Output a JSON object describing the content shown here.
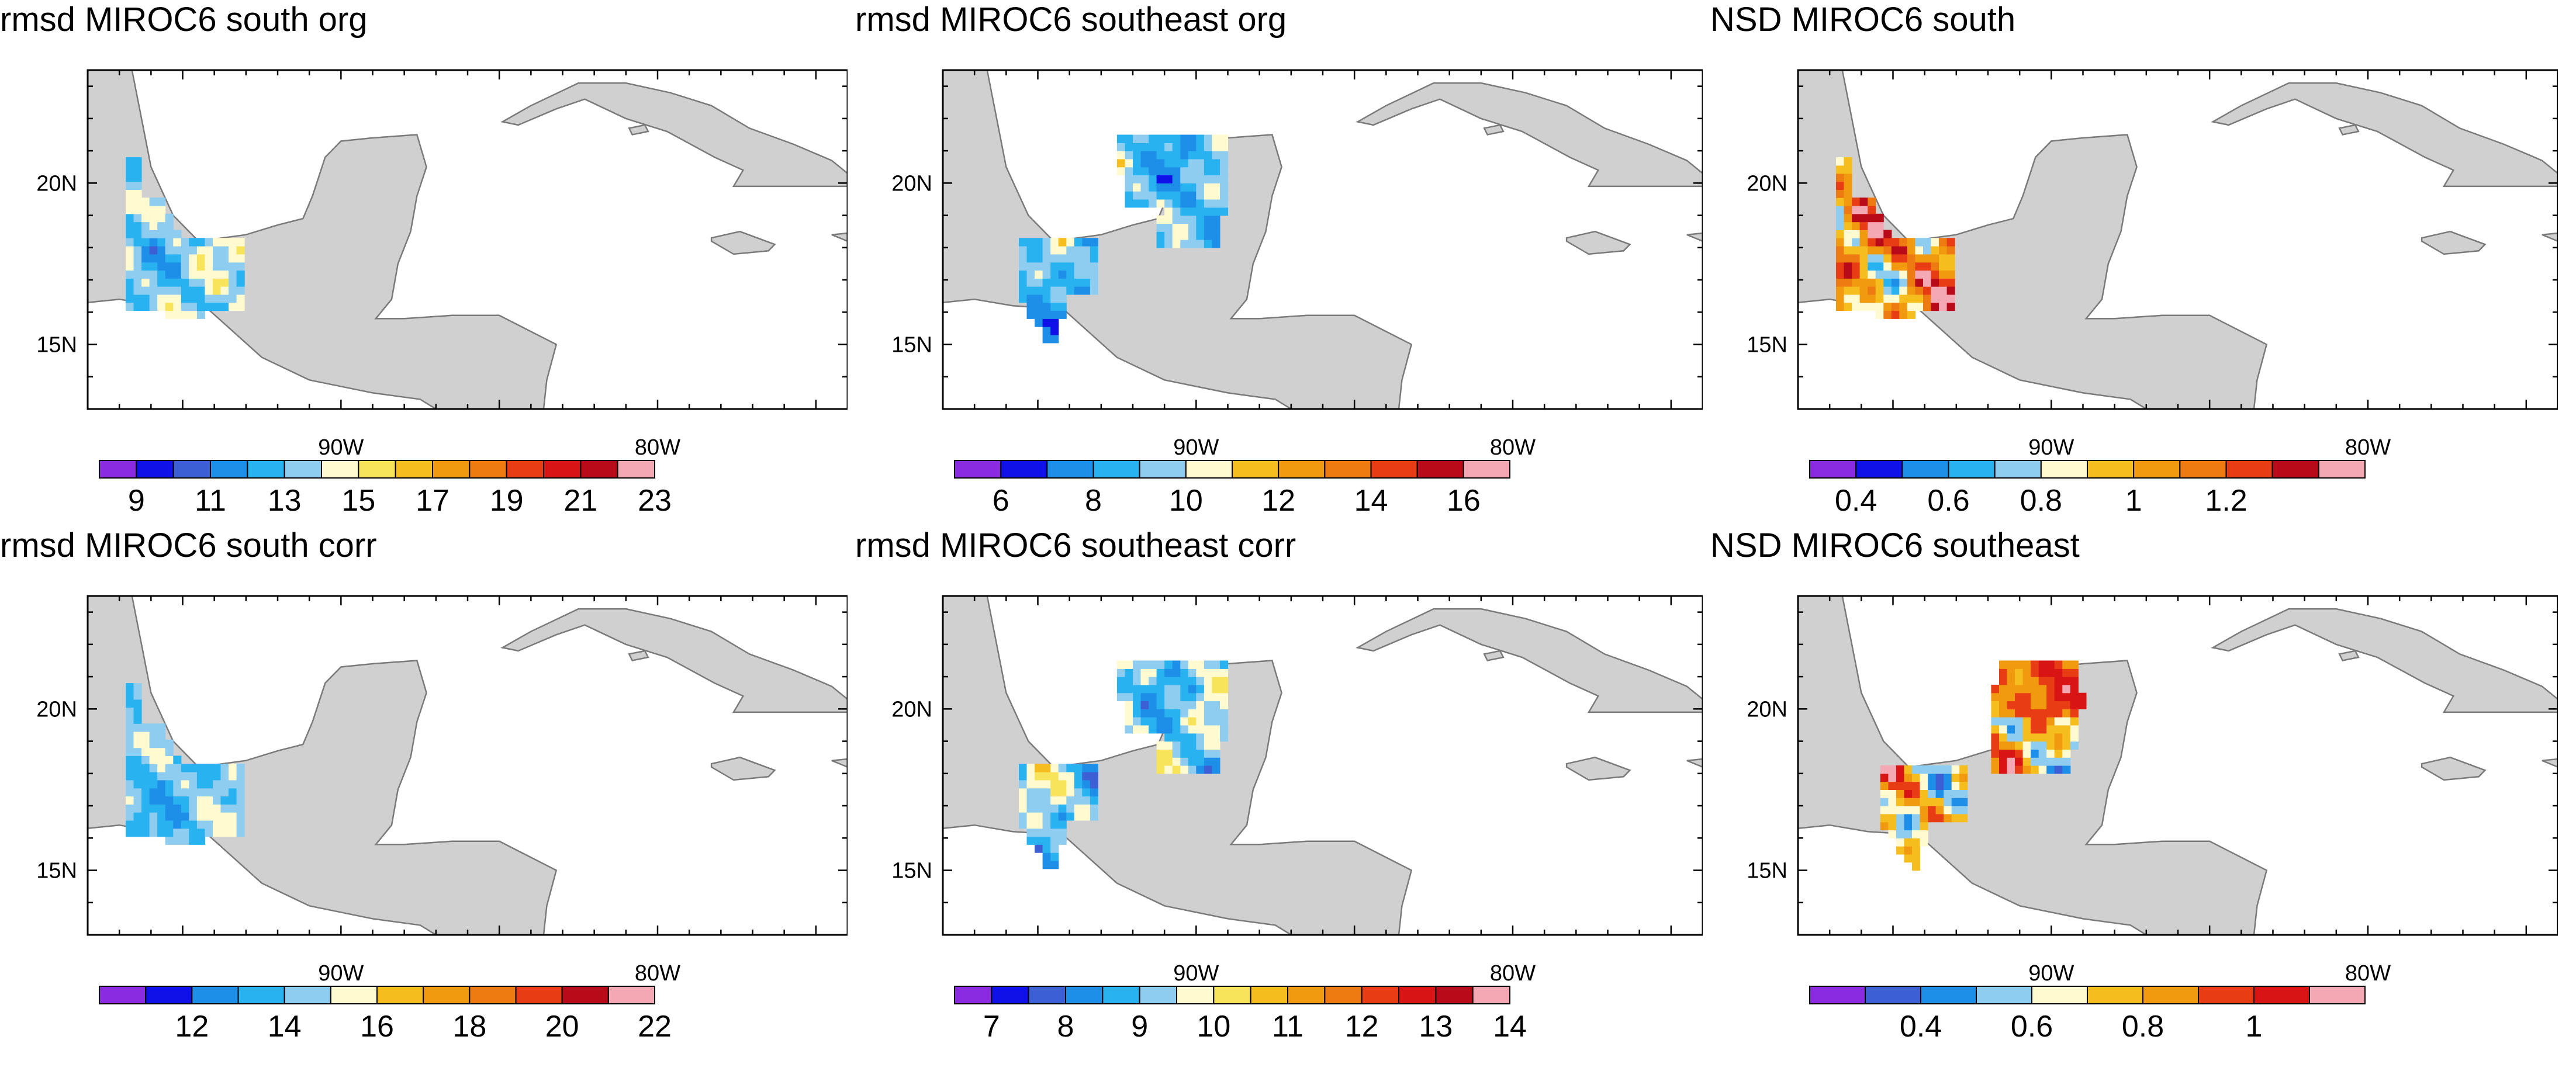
{
  "colors": {
    "land": "#d0d0d0",
    "coast": "#7a7a7a",
    "frame": "#000000",
    "palette": [
      "#8a2be2",
      "#1010e8",
      "#3c5fd6",
      "#1e8fe8",
      "#29b2f0",
      "#8ecdf0",
      "#fffad0",
      "#f8e45a",
      "#f5be1e",
      "#f29a0f",
      "#ee7a12",
      "#e83c15",
      "#d91414",
      "#b80a18",
      "#f4a8b4"
    ]
  },
  "chart_data": [
    {
      "type": "heatmap",
      "title": "rmsd MIROC6 south org",
      "region": "south",
      "xlim": [
        -98,
        -74
      ],
      "ylim": [
        13,
        23.5
      ],
      "x_ticks": [
        "90W",
        "80W"
      ],
      "y_ticks": [
        "20N",
        "15N"
      ],
      "colorbar": {
        "labels": [
          "9",
          "11",
          "13",
          "15",
          "17",
          "19",
          "21",
          "23"
        ],
        "bins": 15,
        "first_label_bin": 1,
        "label_step": 2
      }
    },
    {
      "type": "heatmap",
      "title": "rmsd MIROC6 southeast org",
      "region": "southeast",
      "xlim": [
        -98,
        -74
      ],
      "ylim": [
        13,
        23.5
      ],
      "x_ticks": [
        "90W",
        "80W"
      ],
      "y_ticks": [
        "20N",
        "15N"
      ],
      "colorbar": {
        "labels": [
          "6",
          "8",
          "10",
          "12",
          "14",
          "16"
        ],
        "bins": 12,
        "first_label_bin": 1,
        "label_step": 2
      }
    },
    {
      "type": "heatmap",
      "title": "NSD MIROC6 south",
      "region": "south",
      "xlim": [
        -98,
        -74
      ],
      "ylim": [
        13,
        23.5
      ],
      "x_ticks": [
        "90W",
        "80W"
      ],
      "y_ticks": [
        "20N",
        "15N"
      ],
      "colorbar": {
        "labels": [
          "0.4",
          "0.6",
          "0.8",
          "1",
          "1.2"
        ],
        "bins": 12,
        "first_label_bin": 1,
        "label_step": 2
      }
    },
    {
      "type": "heatmap",
      "title": "rmsd MIROC6 south corr",
      "region": "south",
      "xlim": [
        -98,
        -74
      ],
      "ylim": [
        13,
        23.5
      ],
      "x_ticks": [
        "90W",
        "80W"
      ],
      "y_ticks": [
        "20N",
        "15N"
      ],
      "colorbar": {
        "labels": [
          "12",
          "14",
          "16",
          "18",
          "20",
          "22"
        ],
        "bins": 12,
        "first_label_bin": 2,
        "label_step": 2
      }
    },
    {
      "type": "heatmap",
      "title": "rmsd MIROC6 southeast corr",
      "region": "southeast",
      "xlim": [
        -98,
        -74
      ],
      "ylim": [
        13,
        23.5
      ],
      "x_ticks": [
        "90W",
        "80W"
      ],
      "y_ticks": [
        "20N",
        "15N"
      ],
      "colorbar": {
        "labels": [
          "7",
          "8",
          "9",
          "10",
          "11",
          "12",
          "13",
          "14"
        ],
        "bins": 15,
        "first_label_bin": 1,
        "label_step": 2
      }
    },
    {
      "type": "heatmap",
      "title": "NSD MIROC6 southeast",
      "region": "southeast_nsd",
      "xlim": [
        -98,
        -74
      ],
      "ylim": [
        13,
        23.5
      ],
      "x_ticks": [
        "90W",
        "80W"
      ],
      "y_ticks": [
        "20N",
        "15N"
      ],
      "colorbar": {
        "labels": [
          "0.4",
          "0.6",
          "0.8",
          "1"
        ],
        "bins": 10,
        "first_label_bin": 2,
        "label_step": 2
      }
    }
  ]
}
